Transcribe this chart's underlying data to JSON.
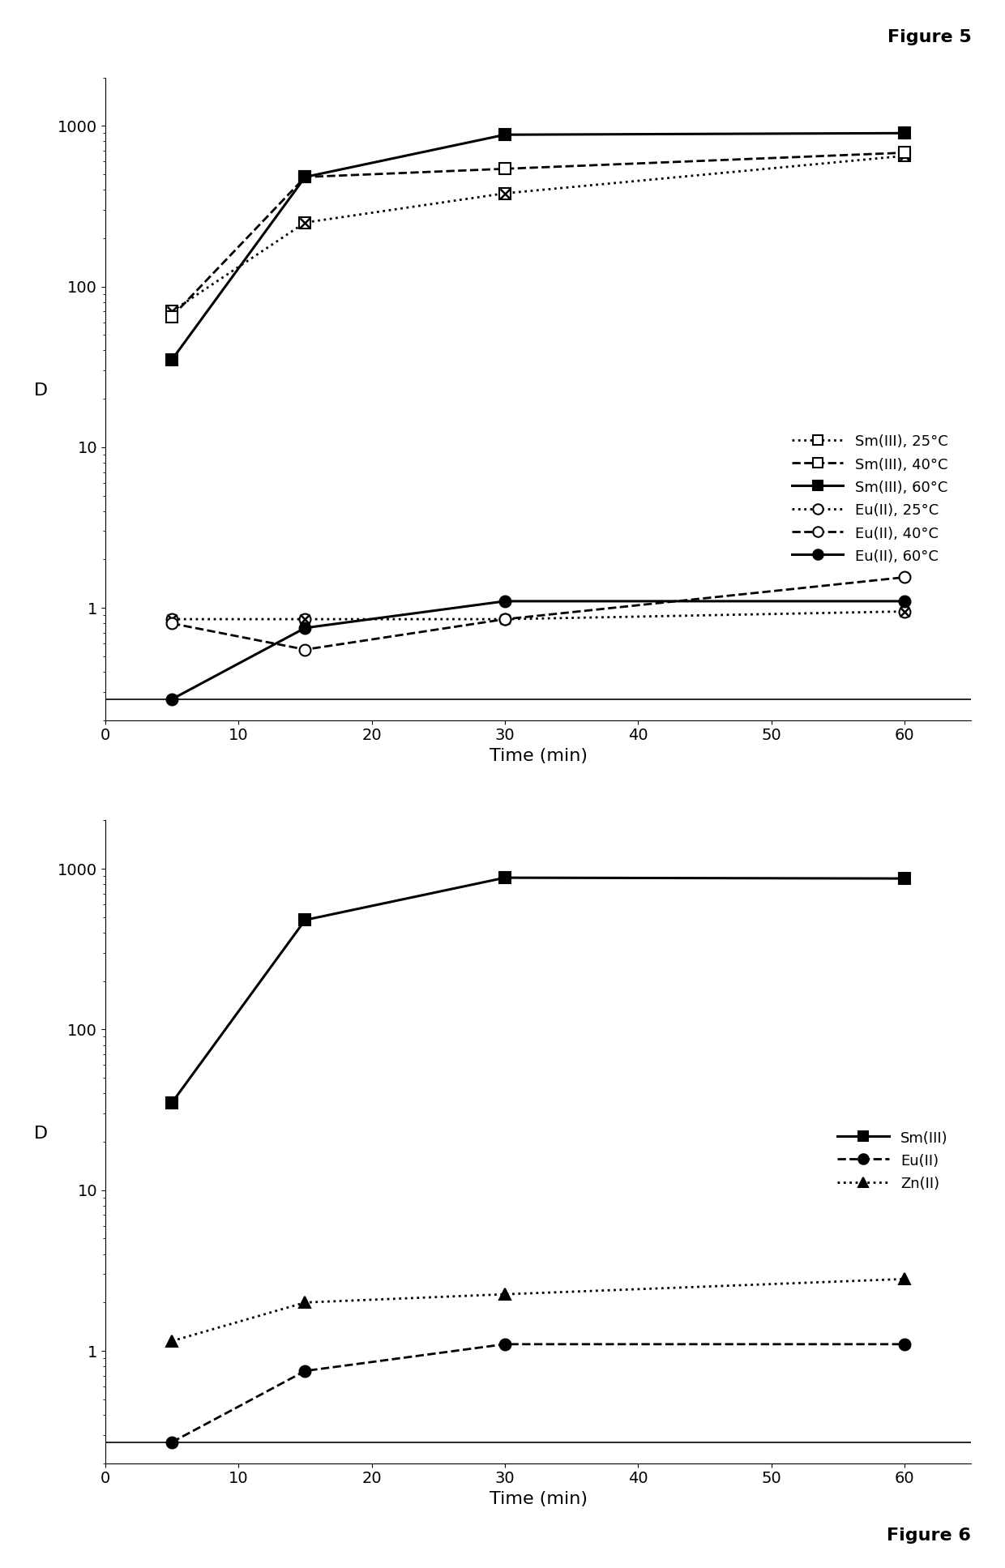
{
  "fig5": {
    "time": [
      5,
      15,
      30,
      60
    ],
    "sm25": [
      70,
      250,
      380,
      650
    ],
    "sm40": [
      65,
      480,
      540,
      680
    ],
    "sm60": [
      35,
      480,
      880,
      900
    ],
    "eu25": [
      0.85,
      0.85,
      0.85,
      0.95
    ],
    "eu40": [
      0.8,
      0.55,
      0.85,
      1.55
    ],
    "eu60": [
      0.27,
      0.75,
      1.1,
      1.1
    ],
    "xlabel": "Time (min)",
    "ylabel": "D",
    "title": "Figure 5",
    "ylim": [
      0.2,
      2000
    ],
    "xlim": [
      0,
      65
    ],
    "xticks": [
      0,
      10,
      20,
      30,
      40,
      50,
      60
    ],
    "yticks": [
      1,
      10,
      100,
      1000
    ],
    "ytick_labels": [
      "1",
      "10",
      "100",
      "1000"
    ],
    "hline_y": 0.27,
    "legend_labels": [
      "Sm(III), 25°C",
      "Sm(III), 40°C",
      "Sm(III), 60°C",
      "Eu(II), 25°C",
      "Eu(II), 40°C",
      "Eu(II), 60°C"
    ]
  },
  "fig6": {
    "time": [
      5,
      15,
      30,
      60
    ],
    "sm": [
      35,
      480,
      880,
      870
    ],
    "eu": [
      0.27,
      0.75,
      1.1,
      1.1
    ],
    "zn": [
      1.15,
      2.0,
      2.25,
      2.8
    ],
    "xlabel": "Time (min)",
    "ylabel": "D",
    "title": "Figure 6",
    "ylim": [
      0.2,
      2000
    ],
    "xlim": [
      0,
      65
    ],
    "xticks": [
      0,
      10,
      20,
      30,
      40,
      50,
      60
    ],
    "yticks": [
      1,
      10,
      100,
      1000
    ],
    "ytick_labels": [
      "1",
      "10",
      "100",
      "1000"
    ],
    "hline_y": 0.27,
    "legend_labels": [
      "Sm(III)",
      "Eu(II)",
      "Zn(II)"
    ]
  }
}
